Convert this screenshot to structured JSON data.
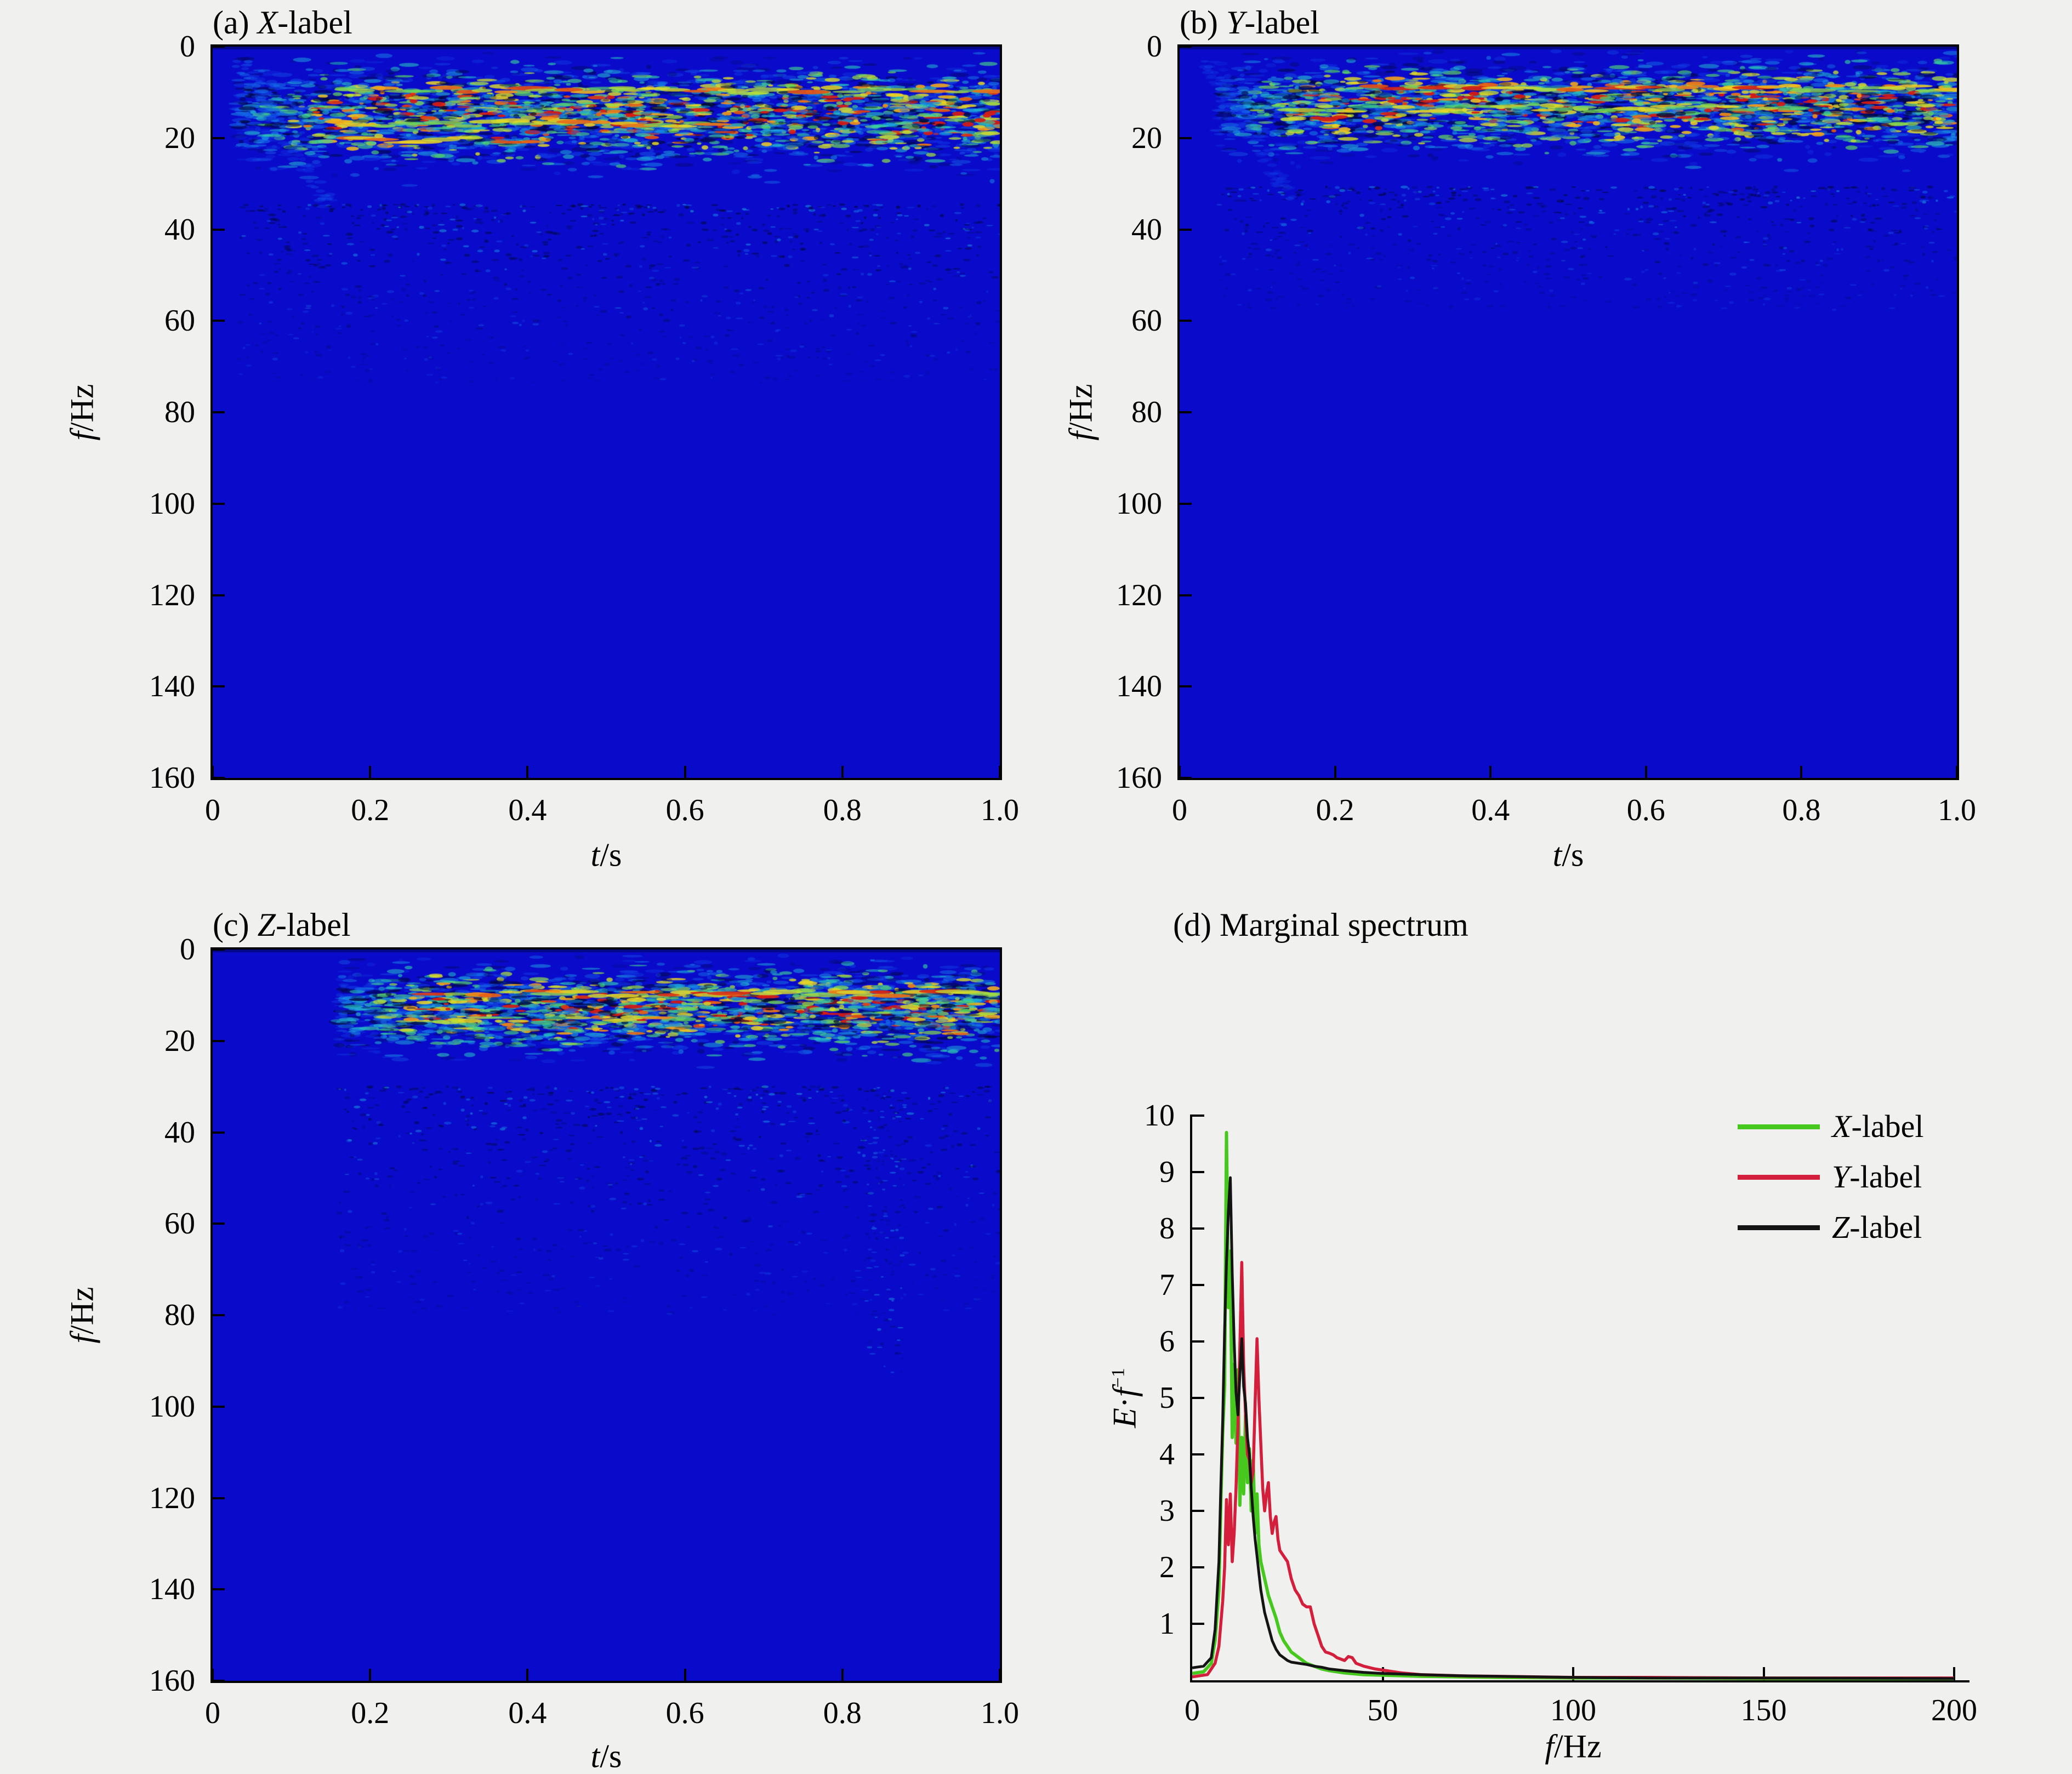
{
  "figure": {
    "background": "#f0f0ee",
    "axis_color": "#000000",
    "spectrogram_background": "#0a0bca",
    "colormap": "jet"
  },
  "chart_data": [
    {
      "id": "a",
      "type": "heatmap",
      "title": "(a) X-label",
      "title_parts": {
        "tag": "(a) ",
        "var": "X",
        "rest": "-label"
      },
      "xlabel": "t/s",
      "xlabel_parts": {
        "var": "t",
        "rest": "/s"
      },
      "ylabel": "f/Hz",
      "ylabel_parts": {
        "var": "f",
        "rest": "/Hz"
      },
      "x_ticks": [
        "0",
        "0.2",
        "0.4",
        "0.6",
        "0.8",
        "1.0"
      ],
      "y_ticks": [
        "0",
        "20",
        "40",
        "60",
        "80",
        "100",
        "120",
        "140",
        "160"
      ],
      "x_range": [
        0,
        1.0
      ],
      "y_range": [
        0,
        160
      ],
      "y_axis_inverted": true,
      "energy_summary": "Energy concentrated in a 5-35 Hz band from t=0.05-1.0 s, strongest yellow-orange spots near 10-20 Hz around t=0.25-1.0; faint speckles extend down to about 60 Hz",
      "render": {
        "seed": 7,
        "t_start": 0.03,
        "band_center": 0.095,
        "band_sigma": 0.055,
        "blob_count": 3200,
        "speckle_count": 1000,
        "speckle_depth": 0.46,
        "wisp": 1.0,
        "column": null,
        "streaks": [
          {
            "y": 0.06,
            "x0": 0.17,
            "x1": 1.0,
            "v0": 0.5,
            "dv": 0.45
          },
          {
            "y": 0.105,
            "x0": 0.16,
            "x1": 0.66,
            "v0": 0.55,
            "dv": 0.4
          },
          {
            "y": 0.128,
            "x0": 0.18,
            "x1": 0.42,
            "v0": 0.5,
            "dv": 0.45
          }
        ]
      }
    },
    {
      "id": "b",
      "type": "heatmap",
      "title": "(b) Y-label",
      "title_parts": {
        "tag": "(b) ",
        "var": "Y",
        "rest": "-label"
      },
      "xlabel": "t/s",
      "xlabel_parts": {
        "var": "t",
        "rest": "/s"
      },
      "ylabel": "f/Hz",
      "ylabel_parts": {
        "var": "f",
        "rest": "/Hz"
      },
      "x_ticks": [
        "0",
        "0.2",
        "0.4",
        "0.6",
        "0.8",
        "1.0"
      ],
      "y_ticks": [
        "0",
        "20",
        "40",
        "60",
        "80",
        "100",
        "120",
        "140",
        "160"
      ],
      "x_range": [
        0,
        1.0
      ],
      "y_range": [
        0,
        160
      ],
      "y_axis_inverted": true,
      "energy_summary": "Energy band 5-30 Hz; continuous yellow-green streak near 9-10 Hz from t=0.35 to 1.0; speckles down to about 40 Hz",
      "render": {
        "seed": 13,
        "t_start": 0.05,
        "band_center": 0.082,
        "band_sigma": 0.05,
        "blob_count": 3000,
        "speckle_count": 800,
        "speckle_depth": 0.36,
        "wisp": 0.5,
        "column": null,
        "streaks": [
          {
            "y": 0.057,
            "x0": 0.25,
            "x1": 1.0,
            "v0": 0.6,
            "dv": 0.4
          },
          {
            "y": 0.085,
            "x0": 0.14,
            "x1": 0.8,
            "v0": 0.45,
            "dv": 0.35
          }
        ]
      }
    },
    {
      "id": "c",
      "type": "heatmap",
      "title": "(c) Z-label",
      "title_parts": {
        "tag": "(c) ",
        "var": "Z",
        "rest": "-label"
      },
      "xlabel": "t/s",
      "xlabel_parts": {
        "var": "t",
        "rest": "/s"
      },
      "ylabel": "f/Hz",
      "ylabel_parts": {
        "var": "f",
        "rest": "/Hz"
      },
      "x_ticks": [
        "0",
        "0.2",
        "0.4",
        "0.6",
        "0.8",
        "1.0"
      ],
      "y_ticks": [
        "0",
        "20",
        "40",
        "60",
        "80",
        "100",
        "120",
        "140",
        "160"
      ],
      "x_range": [
        0,
        1.0
      ],
      "y_range": [
        0,
        160
      ],
      "y_axis_inverted": true,
      "energy_summary": "Activity starts near t=0.15; bright yellow-orange streak near 10 Hz from t=0.3-0.99; speckle tail extends to about 80 Hz near t=0.85",
      "render": {
        "seed": 29,
        "t_start": 0.16,
        "band_center": 0.082,
        "band_sigma": 0.048,
        "blob_count": 2800,
        "speckle_count": 900,
        "speckle_depth": 0.5,
        "wisp": 0,
        "column": {
          "x": 0.855,
          "depth": 0.58,
          "count": 140
        },
        "streaks": [
          {
            "y": 0.06,
            "x0": 0.28,
            "x1": 0.99,
            "v0": 0.6,
            "dv": 0.4
          },
          {
            "y": 0.096,
            "x0": 0.3,
            "x1": 0.62,
            "v0": 0.5,
            "dv": 0.4
          }
        ]
      }
    },
    {
      "id": "d",
      "type": "line",
      "title": "(d) Marginal spectrum",
      "title_parts": {
        "tag": "(d) ",
        "var": "",
        "rest": "Marginal spectrum"
      },
      "xlabel": "f/Hz",
      "xlabel_parts": {
        "var": "f",
        "rest": "/Hz"
      },
      "ylabel": "E·f⁻¹",
      "ylabel_parts": {
        "e": "E",
        "dot": "·",
        "f": "f",
        "sup": "−1"
      },
      "x_ticks": [
        "0",
        "50",
        "100",
        "150",
        "200"
      ],
      "y_ticks": [
        "1",
        "2",
        "3",
        "4",
        "5",
        "6",
        "7",
        "8",
        "9",
        "10"
      ],
      "xlim": [
        0,
        200
      ],
      "ylim": [
        0,
        10
      ],
      "grid": false,
      "legend_position": "top-right",
      "legend": [
        {
          "name": "X-label",
          "var": "X",
          "rest": "-label",
          "color": "#46c81e"
        },
        {
          "name": "Y-label",
          "var": "Y",
          "rest": "-label",
          "color": "#d41f3c"
        },
        {
          "name": "Z-label",
          "var": "Z",
          "rest": "-label",
          "color": "#141414"
        }
      ],
      "series": [
        {
          "name": "X-label",
          "color": "#46c81e",
          "points": [
            [
              0,
              0.12
            ],
            [
              3,
              0.15
            ],
            [
              5,
              0.3
            ],
            [
              6,
              0.7
            ],
            [
              7,
              1.6
            ],
            [
              7.5,
              3.1
            ],
            [
              8,
              4.4
            ],
            [
              8.5,
              5.2
            ],
            [
              9,
              9.7
            ],
            [
              9.5,
              6.6
            ],
            [
              10,
              7.6
            ],
            [
              10.5,
              4.3
            ],
            [
              11,
              5.6
            ],
            [
              11.5,
              4.2
            ],
            [
              12,
              5.5
            ],
            [
              12.5,
              3.1
            ],
            [
              13,
              4.3
            ],
            [
              13.5,
              3.3
            ],
            [
              14,
              4.7
            ],
            [
              14.5,
              3.5
            ],
            [
              15,
              4.1
            ],
            [
              15.5,
              3.0
            ],
            [
              16,
              3.9
            ],
            [
              16.5,
              2.6
            ],
            [
              17,
              3.3
            ],
            [
              17.5,
              2.4
            ],
            [
              18,
              2.1
            ],
            [
              19,
              1.8
            ],
            [
              20,
              1.5
            ],
            [
              21,
              1.3
            ],
            [
              22,
              1.1
            ],
            [
              23,
              0.85
            ],
            [
              24,
              0.7
            ],
            [
              25,
              0.6
            ],
            [
              26,
              0.5
            ],
            [
              27,
              0.45
            ],
            [
              28,
              0.4
            ],
            [
              30,
              0.3
            ],
            [
              32,
              0.25
            ],
            [
              34,
              0.2
            ],
            [
              36,
              0.17
            ],
            [
              40,
              0.13
            ],
            [
              45,
              0.1
            ],
            [
              50,
              0.09
            ],
            [
              60,
              0.07
            ],
            [
              70,
              0.06
            ],
            [
              80,
              0.05
            ],
            [
              100,
              0.04
            ],
            [
              120,
              0.04
            ],
            [
              150,
              0.03
            ],
            [
              200,
              0.03
            ]
          ]
        },
        {
          "name": "Y-label",
          "color": "#d41f3c",
          "points": [
            [
              0,
              0.06
            ],
            [
              4,
              0.1
            ],
            [
              6,
              0.3
            ],
            [
              7,
              0.6
            ],
            [
              8,
              1.4
            ],
            [
              8.5,
              2.0
            ],
            [
              9,
              3.2
            ],
            [
              9.5,
              2.4
            ],
            [
              10,
              3.3
            ],
            [
              10.5,
              2.1
            ],
            [
              11,
              2.6
            ],
            [
              11.5,
              3.4
            ],
            [
              12,
              4.5
            ],
            [
              12.5,
              5.9
            ],
            [
              13,
              7.4
            ],
            [
              13.5,
              5.6
            ],
            [
              14,
              4.7
            ],
            [
              14.5,
              4.0
            ],
            [
              15,
              3.9
            ],
            [
              15.5,
              3.5
            ],
            [
              16,
              3.7
            ],
            [
              16.5,
              4.9
            ],
            [
              17,
              6.05
            ],
            [
              17.5,
              5.0
            ],
            [
              18,
              4.2
            ],
            [
              18.5,
              3.4
            ],
            [
              19,
              3.0
            ],
            [
              19.5,
              3.3
            ],
            [
              20,
              3.5
            ],
            [
              20.5,
              2.9
            ],
            [
              21,
              2.6
            ],
            [
              21.5,
              2.8
            ],
            [
              22,
              2.9
            ],
            [
              22.5,
              2.5
            ],
            [
              23,
              2.3
            ],
            [
              24,
              2.2
            ],
            [
              25,
              2.1
            ],
            [
              26,
              1.8
            ],
            [
              27,
              1.6
            ],
            [
              28,
              1.5
            ],
            [
              29,
              1.35
            ],
            [
              30,
              1.3
            ],
            [
              31,
              1.3
            ],
            [
              32,
              1.0
            ],
            [
              33,
              0.8
            ],
            [
              34,
              0.6
            ],
            [
              35,
              0.5
            ],
            [
              36,
              0.48
            ],
            [
              37,
              0.45
            ],
            [
              38,
              0.4
            ],
            [
              40,
              0.35
            ],
            [
              41,
              0.42
            ],
            [
              42,
              0.4
            ],
            [
              43,
              0.3
            ],
            [
              45,
              0.25
            ],
            [
              48,
              0.2
            ],
            [
              50,
              0.18
            ],
            [
              55,
              0.13
            ],
            [
              60,
              0.1
            ],
            [
              70,
              0.08
            ],
            [
              80,
              0.07
            ],
            [
              100,
              0.05
            ],
            [
              120,
              0.05
            ],
            [
              150,
              0.04
            ],
            [
              200,
              0.04
            ]
          ]
        },
        {
          "name": "Z-label",
          "color": "#141414",
          "points": [
            [
              0,
              0.22
            ],
            [
              3,
              0.25
            ],
            [
              5,
              0.4
            ],
            [
              6,
              0.9
            ],
            [
              7,
              2.1
            ],
            [
              7.5,
              3.4
            ],
            [
              8,
              4.6
            ],
            [
              8.5,
              6.2
            ],
            [
              9,
              7.4
            ],
            [
              9.5,
              8.3
            ],
            [
              10,
              8.9
            ],
            [
              10.5,
              7.2
            ],
            [
              11,
              6.0
            ],
            [
              11.5,
              5.1
            ],
            [
              12,
              4.7
            ],
            [
              12.5,
              5.4
            ],
            [
              13,
              6.05
            ],
            [
              13.5,
              5.2
            ],
            [
              14,
              4.9
            ],
            [
              14.5,
              4.3
            ],
            [
              15,
              4.0
            ],
            [
              15.5,
              3.4
            ],
            [
              16,
              2.9
            ],
            [
              16.5,
              2.5
            ],
            [
              17,
              2.2
            ],
            [
              17.5,
              1.9
            ],
            [
              18,
              1.6
            ],
            [
              19,
              1.2
            ],
            [
              20,
              0.95
            ],
            [
              21,
              0.7
            ],
            [
              22,
              0.55
            ],
            [
              23,
              0.45
            ],
            [
              24,
              0.4
            ],
            [
              25,
              0.35
            ],
            [
              26,
              0.32
            ],
            [
              28,
              0.3
            ],
            [
              30,
              0.28
            ],
            [
              32,
              0.25
            ],
            [
              34,
              0.23
            ],
            [
              36,
              0.2
            ],
            [
              40,
              0.17
            ],
            [
              45,
              0.14
            ],
            [
              50,
              0.12
            ],
            [
              60,
              0.1
            ],
            [
              70,
              0.08
            ],
            [
              80,
              0.07
            ],
            [
              100,
              0.05
            ],
            [
              120,
              0.04
            ],
            [
              150,
              0.04
            ],
            [
              200,
              0.03
            ]
          ]
        }
      ]
    }
  ]
}
